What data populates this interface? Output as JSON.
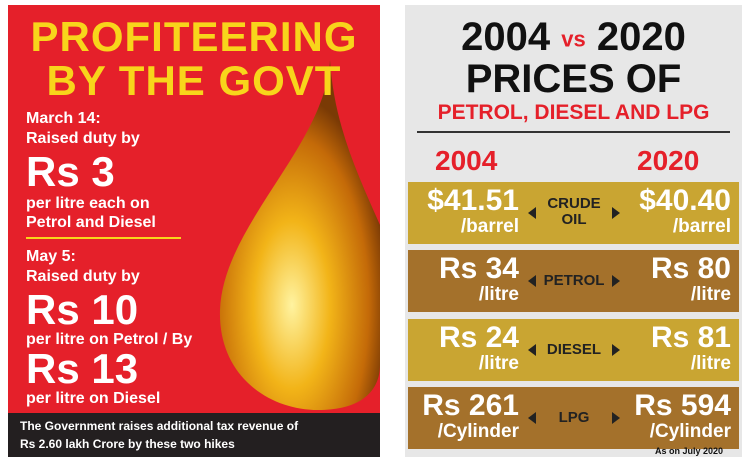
{
  "left": {
    "title": [
      "PROFITEERING",
      "BY THE GOVT"
    ],
    "hike1": {
      "date": "March 14:",
      "action": "Raised duty by",
      "amount": "Rs 3",
      "detail": [
        "per litre each on",
        "Petrol and Diesel"
      ]
    },
    "hike2": {
      "date": "May 5:",
      "action": "Raised duty by",
      "amount_petrol": "Rs 10",
      "detail_petrol": "per litre on Petrol / By",
      "amount_diesel": "Rs 13",
      "detail_diesel": "per litre on Diesel"
    },
    "footer": [
      "The Government raises additional tax revenue of",
      "Rs 2.60 lakh Crore by these two hikes"
    ]
  },
  "right": {
    "title": {
      "year_a": "2004",
      "vs": "vs",
      "year_b": "2020",
      "line2": "PRICES OF"
    },
    "subtitle": "PETROL, DIESEL AND LPG",
    "years": [
      "2004",
      "2020"
    ],
    "rows": [
      {
        "label": [
          "CRUDE",
          "OIL"
        ],
        "left": {
          "price": "$41.51",
          "unit": "/barrel"
        },
        "right": {
          "price": "$40.40",
          "unit": "/barrel"
        }
      },
      {
        "label": [
          "PETROL"
        ],
        "left": {
          "price": "Rs 34",
          "unit": "/litre"
        },
        "right": {
          "price": "Rs 80",
          "unit": "/litre"
        }
      },
      {
        "label": [
          "DIESEL"
        ],
        "left": {
          "price": "Rs 24",
          "unit": "/litre"
        },
        "right": {
          "price": "Rs 81",
          "unit": "/litre"
        }
      },
      {
        "label": [
          "LPG"
        ],
        "left": {
          "price": "Rs 261",
          "unit": "/Cylinder"
        },
        "right": {
          "price": "Rs 594",
          "unit": "/Cylinder"
        }
      }
    ],
    "note": "As on July 2020"
  }
}
